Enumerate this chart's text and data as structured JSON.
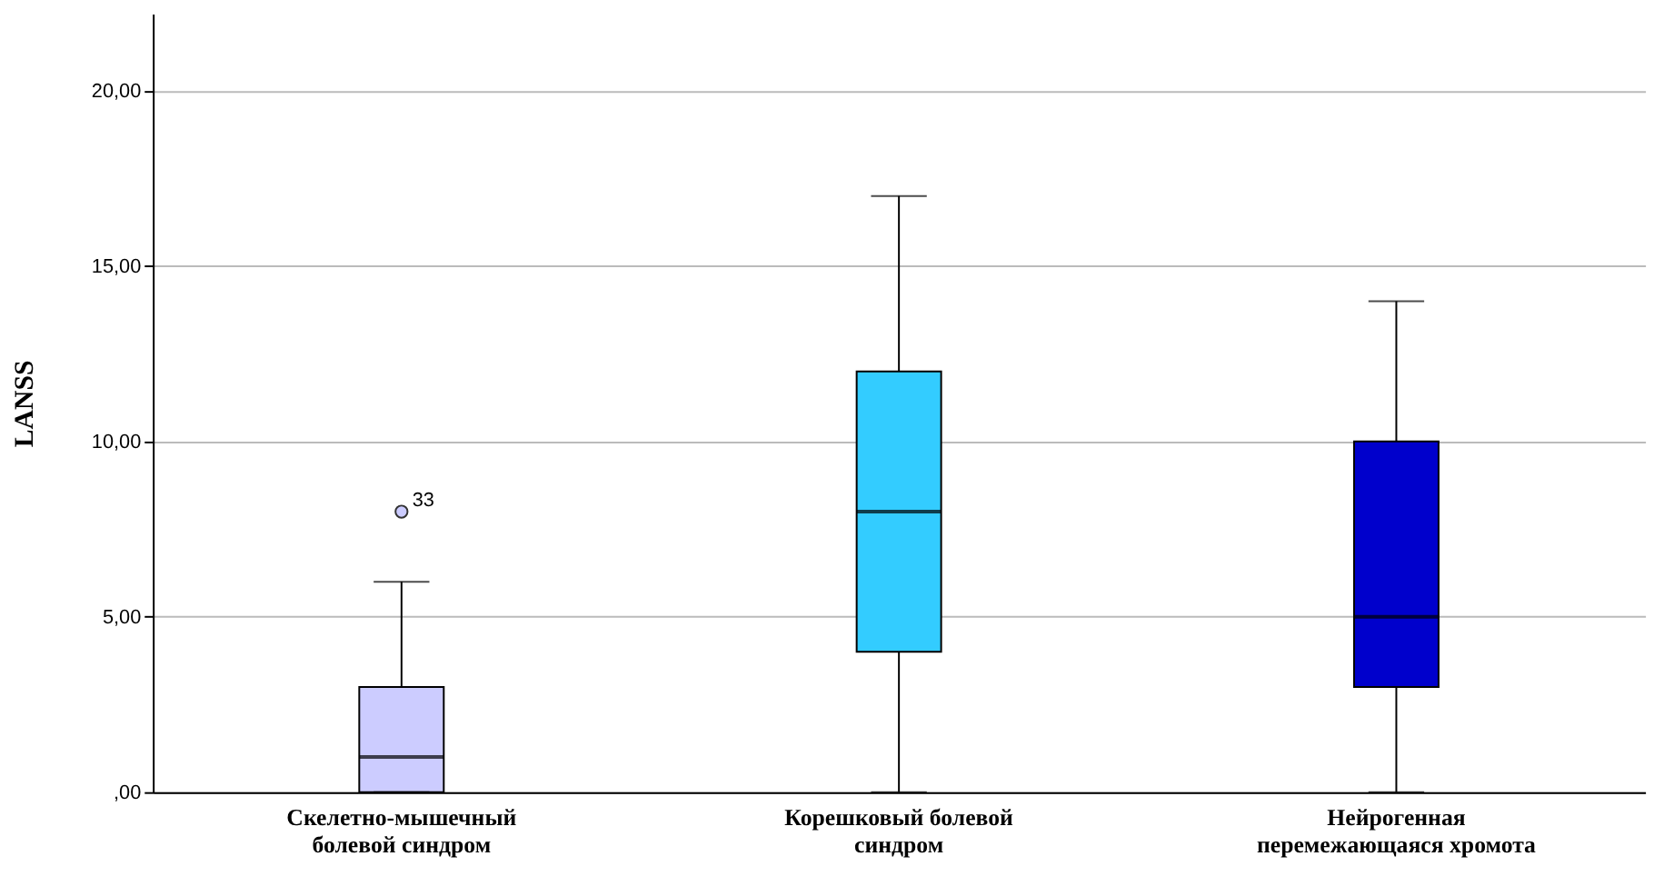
{
  "chart_data": {
    "type": "box",
    "ylabel": "LANSS",
    "categories": [
      "Скелетно-мышечный болевой синдром",
      "Корешковый болевой синдром",
      "Нейрогенная перемежающаяся хромота"
    ],
    "colors": [
      "#ccccff",
      "#33ccff",
      "#0000cc"
    ],
    "boxes": [
      {
        "low": 0,
        "q1": 0,
        "median": 1,
        "q3": 3,
        "high": 6,
        "outliers": [
          8
        ]
      },
      {
        "low": 0,
        "q1": 4,
        "median": 8,
        "q3": 12,
        "high": 17
      },
      {
        "low": 0,
        "q1": 3,
        "median": 5,
        "q3": 10,
        "high": 14
      }
    ],
    "ylim": [
      0,
      22.2
    ],
    "yticks": [
      {
        "value": 0,
        "label": ",00"
      },
      {
        "value": 5,
        "label": "5,00"
      },
      {
        "value": 10,
        "label": "10,00"
      },
      {
        "value": 15,
        "label": "15,00"
      },
      {
        "value": 20,
        "label": "20,00"
      }
    ],
    "annotations": [
      "33"
    ],
    "grid": "y"
  }
}
